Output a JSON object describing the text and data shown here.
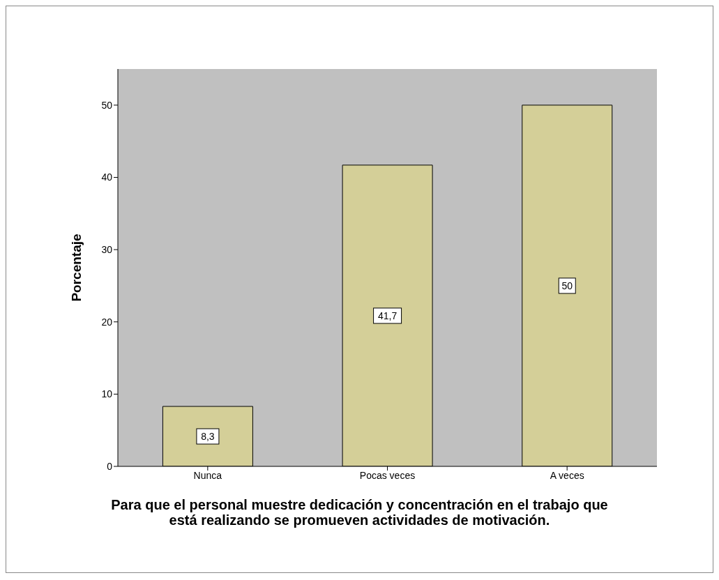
{
  "chart_data": {
    "type": "bar",
    "ylabel": "Porcentaje",
    "xlabel": "Para que el personal muestre dedicación y concentración en el trabajo que está realizando se promueven actividades de motivación.",
    "categories": [
      "Nunca",
      "Pocas veces",
      "A veces"
    ],
    "values": [
      8.3,
      41.7,
      50
    ],
    "value_labels": [
      "8,3",
      "41,7",
      "50"
    ],
    "color": "#d4cf98",
    "ylim": [
      0,
      55
    ],
    "yticks": [
      0,
      10,
      20,
      30,
      40,
      50
    ],
    "grid": false,
    "legend": false
  }
}
